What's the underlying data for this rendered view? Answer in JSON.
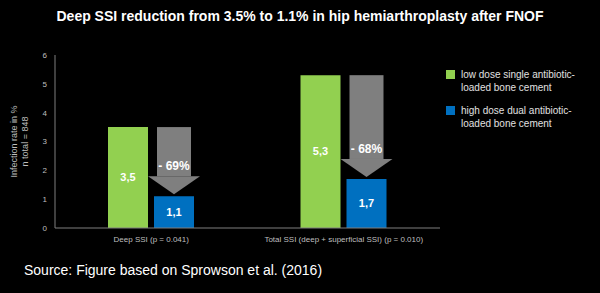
{
  "chart_data": {
    "type": "bar",
    "title": "Deep SSI reduction from 3.5% to 1.1% in hip hemiarthroplasty after FNOF",
    "y_label": "Infection rate in %\nn total = 848",
    "categories": [
      "Deep SSI (p = 0.041)",
      "Total SSI (deep + superficial SSI) (p = 0.010)"
    ],
    "series": [
      {
        "name": "low dose single antibiotic-loaded bone cement",
        "color": "#92d050",
        "values": [
          3.5,
          5.3
        ],
        "value_labels": [
          "3,5",
          "5,3"
        ]
      },
      {
        "name": "high dose dual antibiotic-loaded bone cement",
        "color": "#0070c0",
        "values": [
          1.1,
          1.7
        ],
        "value_labels": [
          "1,1",
          "1,7"
        ]
      }
    ],
    "ylim": [
      0,
      6
    ],
    "yticks": [
      0,
      1,
      2,
      3,
      4,
      5,
      6
    ],
    "grid": false,
    "legend": "top right",
    "data_labels": true,
    "annotations": [
      "- 69%",
      "- 68%"
    ],
    "source": "Source: Figure based on Sprowson et al. (2016)"
  }
}
